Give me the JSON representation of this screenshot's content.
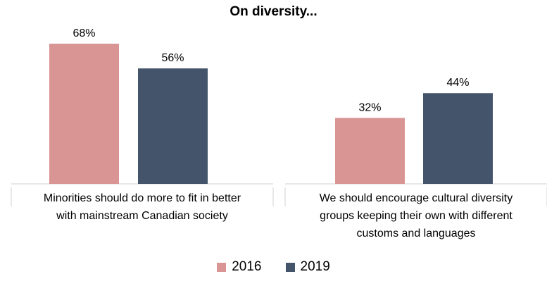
{
  "chart_data": {
    "type": "bar",
    "title": "On diversity...",
    "categories": [
      "Minorities should do more to fit in better with mainstream Canadian society",
      "We should encourage cultural diversity groups keeping their own with different customs and languages"
    ],
    "series": [
      {
        "name": "2016",
        "values": [
          68,
          32
        ],
        "color": "#d99594"
      },
      {
        "name": "2019",
        "values": [
          56,
          44
        ],
        "color": "#44546a"
      }
    ],
    "value_labels": [
      [
        "68%",
        "32%"
      ],
      [
        "56%",
        "44%"
      ]
    ],
    "category_labels": [
      {
        "line1": "Minorities should do more to fit in better",
        "line2": "with mainstream Canadian society",
        "line3": ""
      },
      {
        "line1": "We should encourage cultural diversity",
        "line2": "groups keeping their own with different",
        "line3": "customs and languages"
      }
    ],
    "ylim": [
      0,
      100
    ],
    "grid": false,
    "legend_position": "bottom"
  }
}
